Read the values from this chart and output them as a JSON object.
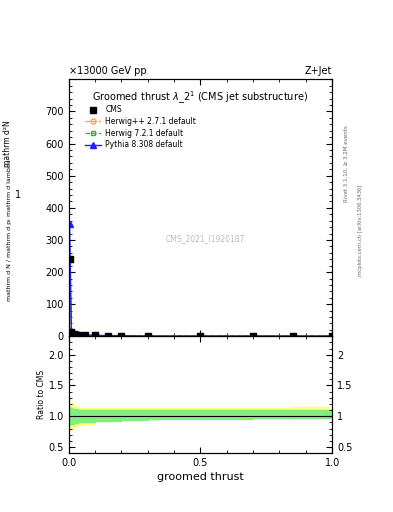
{
  "title": "Groomed thrust λ_2¹ (CMS jet substructure)",
  "header_left": "×13000 GeV pp",
  "header_right": "Z+Jet",
  "ylabel_main_line1": "mathrm d²N",
  "ylabel_main_line2": "1",
  "ylabel_main_line3": "mathrm d N / mathrm d pₜ mathrm d lambda",
  "ylabel_ratio": "Ratio to CMS",
  "xlabel": "groomed thrust",
  "watermark": "CMS_2021_I1920187",
  "right_label_top": "Rivet 3.1.10, ≥ 3.2M events",
  "right_label_bottom": "mcplots.cern.ch [arXiv:1306.3436]",
  "ylim_main": [
    0,
    800
  ],
  "ylim_ratio": [
    0.4,
    2.3
  ],
  "xlim": [
    0.0,
    1.0
  ],
  "ytick_main": [
    0,
    100,
    200,
    300,
    400,
    500,
    600,
    700
  ],
  "ytick_ratio": [
    0.5,
    1.0,
    1.5,
    2.0
  ],
  "xtick_ratio": [
    0.0,
    0.5,
    1.0
  ],
  "cms_color": "#000000",
  "herwig_pp_color": "#FFA040",
  "herwig72_color": "#40AA40",
  "pythia_color": "#2020FF",
  "yellow_band": "#FFFF80",
  "green_band": "#80EE80",
  "background_color": "#ffffff",
  "main_data_x": [
    0.003,
    0.01,
    0.02,
    0.035,
    0.06,
    0.1,
    0.15,
    0.2,
    0.3,
    0.5,
    0.7,
    0.85,
    1.0
  ],
  "cms_y": [
    240,
    15,
    8,
    5,
    4,
    3,
    2,
    2,
    1,
    1,
    1,
    1,
    1
  ],
  "herwig_pp_y": [
    240,
    14,
    8,
    5,
    4,
    3,
    2,
    2,
    1,
    1,
    1,
    1,
    1
  ],
  "herwig72_y": [
    238,
    14,
    8,
    5,
    4,
    3,
    2,
    2,
    1,
    1,
    1,
    1,
    1
  ],
  "pythia_y": [
    350,
    18,
    9,
    6,
    4,
    3,
    2,
    2,
    1,
    1,
    1,
    1,
    1
  ],
  "ratio_x_edges": [
    0.0,
    0.006,
    0.012,
    0.02,
    0.035,
    0.06,
    0.1,
    0.15,
    0.2,
    0.3,
    0.5,
    0.7,
    0.85,
    1.0
  ],
  "hpp_ratio_lo": [
    0.78,
    0.8,
    0.82,
    0.84,
    0.86,
    0.88,
    0.92,
    0.94,
    0.95,
    0.97,
    0.98,
    0.99,
    1.0
  ],
  "hpp_ratio_hi": [
    1.22,
    1.2,
    1.18,
    1.16,
    1.14,
    1.13,
    1.13,
    1.13,
    1.13,
    1.13,
    1.13,
    1.14,
    1.15
  ],
  "h72_ratio_lo": [
    0.85,
    0.87,
    0.88,
    0.89,
    0.9,
    0.91,
    0.92,
    0.93,
    0.94,
    0.95,
    0.96,
    0.97,
    0.97
  ],
  "h72_ratio_hi": [
    1.15,
    1.13,
    1.12,
    1.11,
    1.1,
    1.1,
    1.1,
    1.1,
    1.1,
    1.1,
    1.1,
    1.1,
    1.1
  ]
}
